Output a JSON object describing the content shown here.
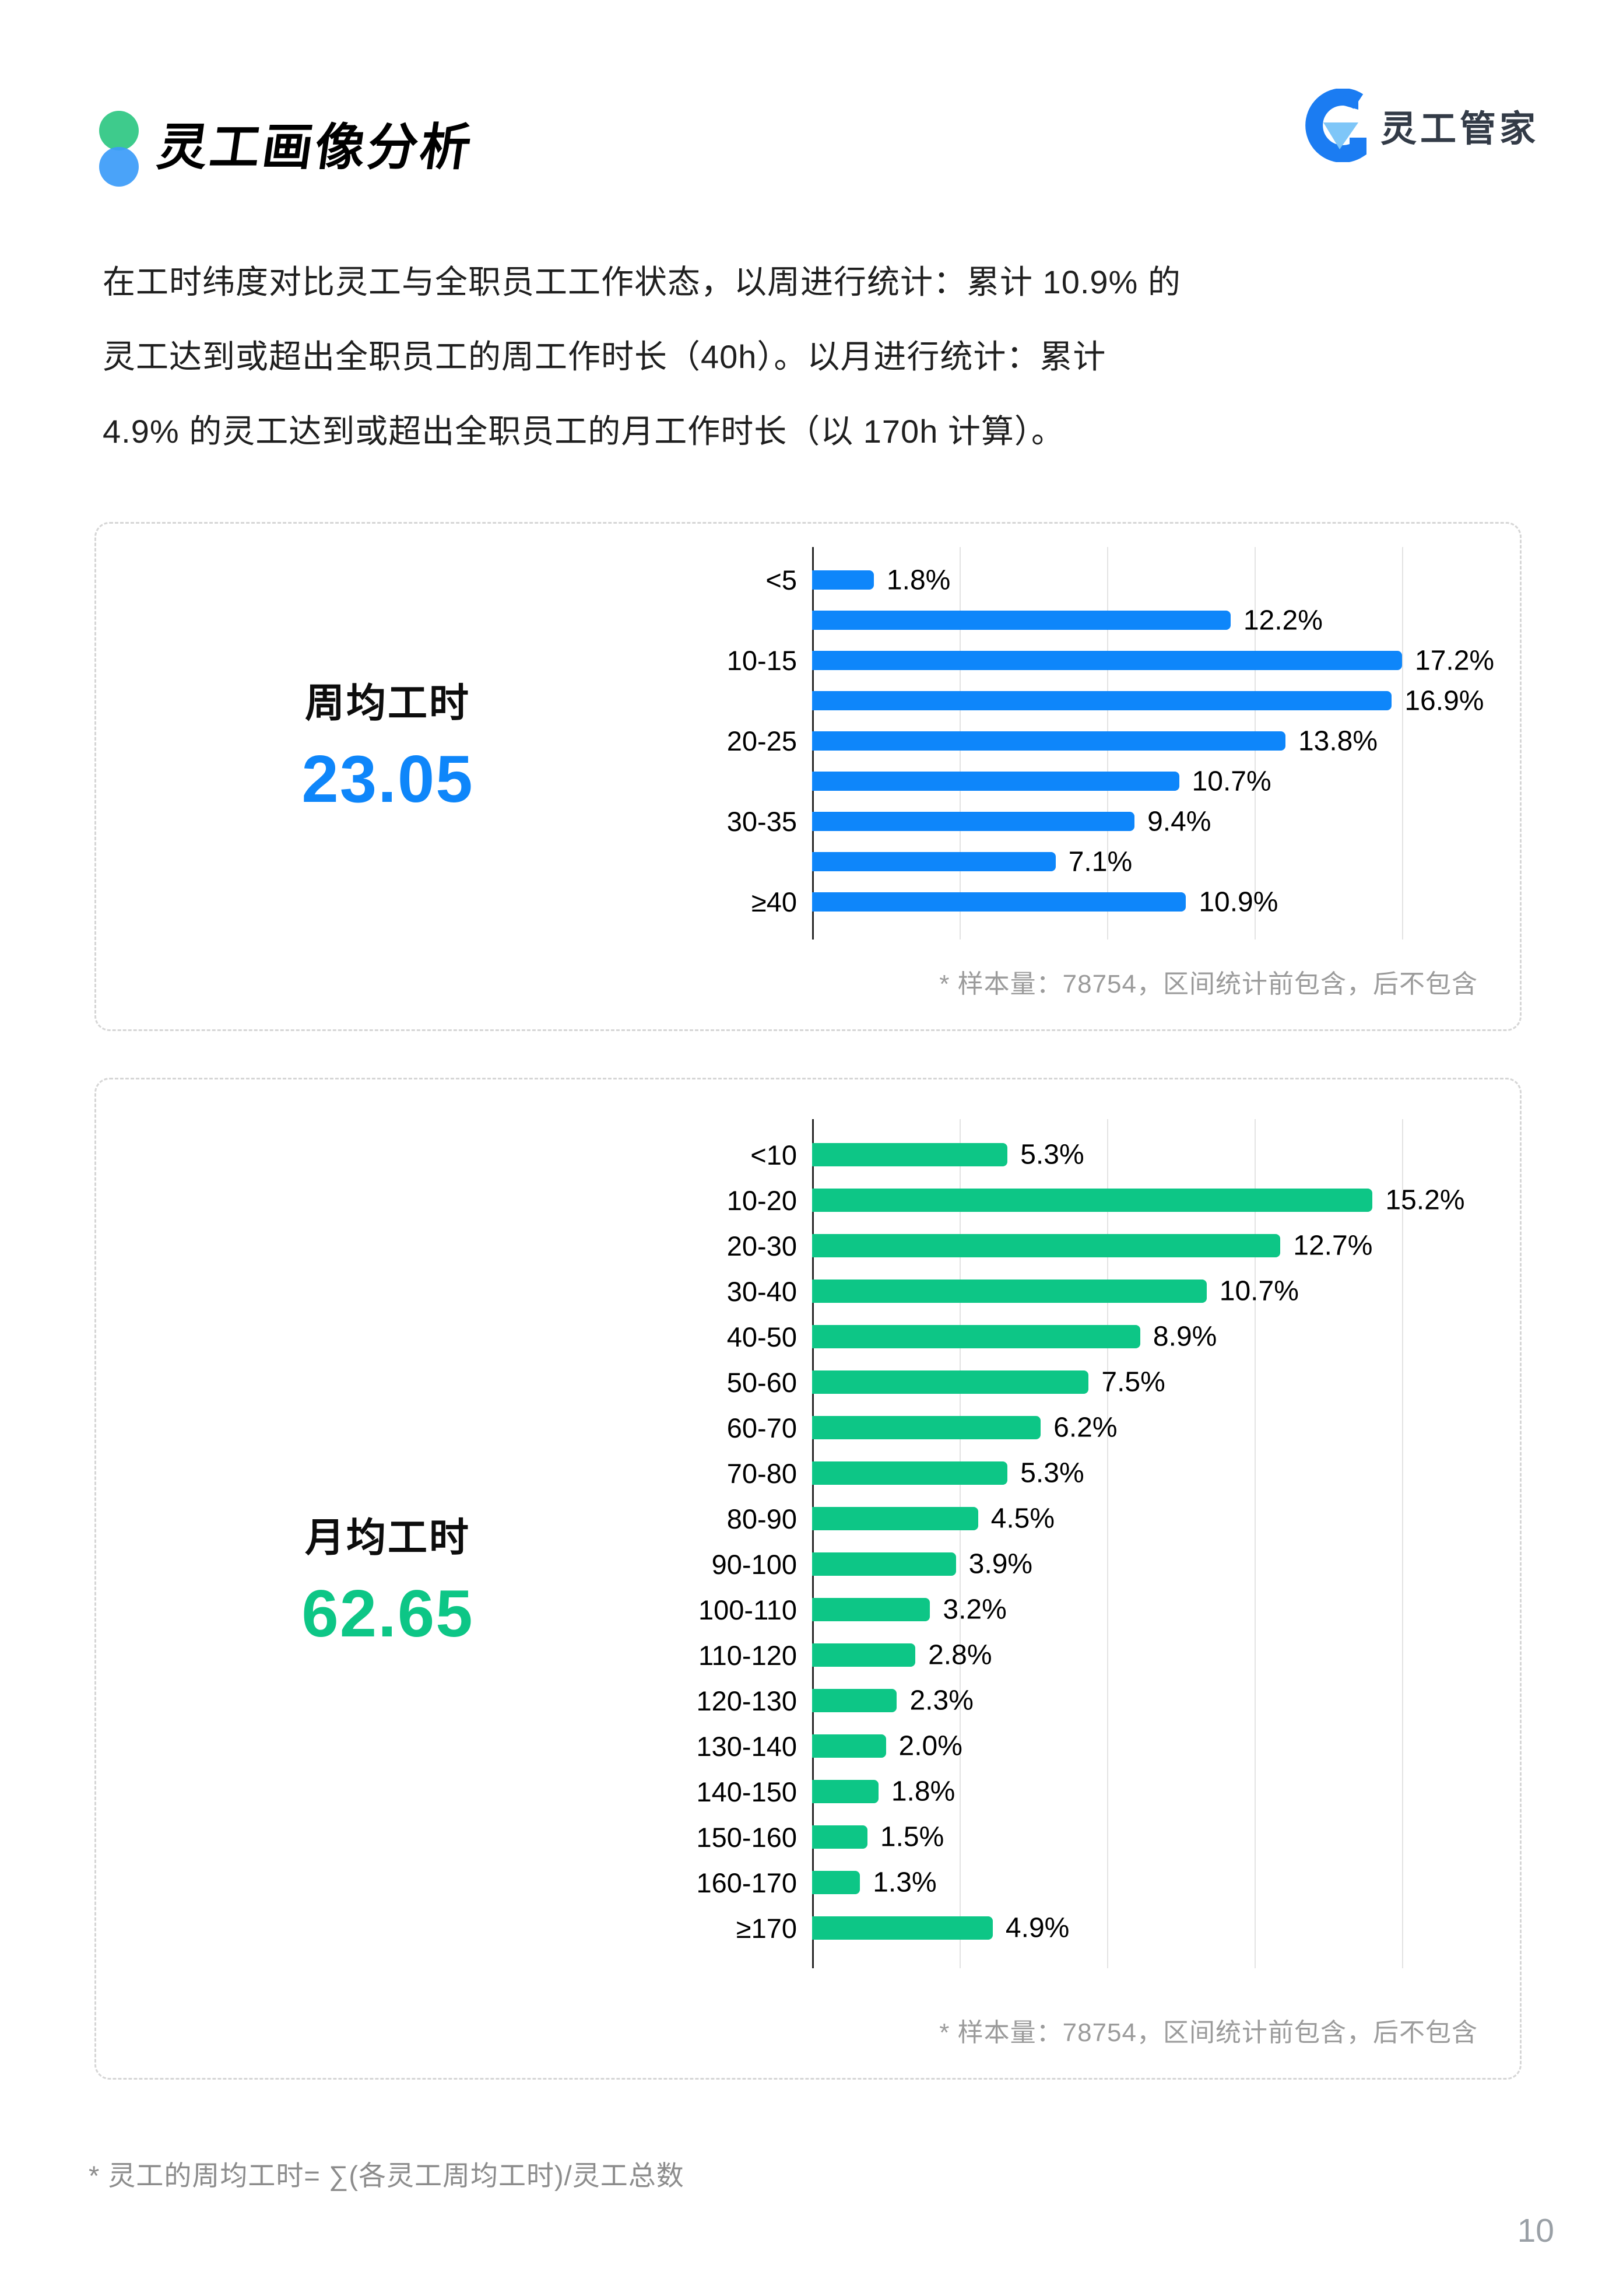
{
  "header": {
    "title": "灵工画像分析",
    "brand": "灵工管家"
  },
  "colors": {
    "logo_green": "#3ECB8C",
    "logo_blue": "#3B9BF8",
    "brand_blue": "#1B7CF2",
    "brand_light_blue": "#7EC6F8",
    "brand_text": "#333B47"
  },
  "intro": {
    "lines": [
      "在工时纬度对比灵工与全职员工工作状态，以周进行统计：累计 10.9% 的",
      "灵工达到或超出全职员工的周工作时长（40h）。以月进行统计：累计",
      "4.9% 的灵工达到或超出全职员工的月工作时长（以 170h 计算）。"
    ]
  },
  "chart_data": [
    {
      "type": "bar",
      "orientation": "horizontal",
      "panel_title": "周均工时",
      "panel_value": "23.05",
      "accent": "#0E86FA",
      "categories": [
        "<5",
        "",
        "10-15",
        "",
        "20-25",
        "",
        "30-35",
        "",
        "≥40"
      ],
      "values": [
        1.8,
        12.2,
        17.2,
        16.9,
        13.8,
        10.7,
        9.4,
        7.1,
        10.9
      ],
      "value_labels": [
        "1.8%",
        "12.2%",
        "17.2%",
        "16.9%",
        "13.8%",
        "10.7%",
        "9.4%",
        "7.1%",
        "10.9%"
      ],
      "value_unit": "%",
      "xmax": 17.2,
      "gridline_count": 5,
      "grid": true,
      "note": "* 样本量：78754，区间统计前包含，后不包含"
    },
    {
      "type": "bar",
      "orientation": "horizontal",
      "panel_title": "月均工时",
      "panel_value": "62.65",
      "accent": "#0DC686",
      "categories": [
        "<10",
        "10-20",
        "20-30",
        "30-40",
        "40-50",
        "50-60",
        "60-70",
        "70-80",
        "80-90",
        "90-100",
        "100-110",
        "110-120",
        "120-130",
        "130-140",
        "140-150",
        "150-160",
        "160-170",
        "≥170"
      ],
      "values": [
        5.3,
        15.2,
        12.7,
        10.7,
        8.9,
        7.5,
        6.2,
        5.3,
        4.5,
        3.9,
        3.2,
        2.8,
        2.3,
        2.0,
        1.8,
        1.5,
        1.3,
        4.9
      ],
      "value_labels": [
        "5.3%",
        "15.2%",
        "12.7%",
        "10.7%",
        "8.9%",
        "7.5%",
        "6.2%",
        "5.3%",
        "4.5%",
        "3.9%",
        "3.2%",
        "2.8%",
        "2.3%",
        "2.0%",
        "1.8%",
        "1.5%",
        "1.3%",
        "4.9%"
      ],
      "value_unit": "%",
      "xmax": 16,
      "gridline_count": 5,
      "grid": true,
      "note": "* 样本量：78754，区间统计前包含，后不包含"
    }
  ],
  "page_footnote": "* 灵工的周均工时= ∑(各灵工周均工时)/灵工总数",
  "page_number": "10"
}
